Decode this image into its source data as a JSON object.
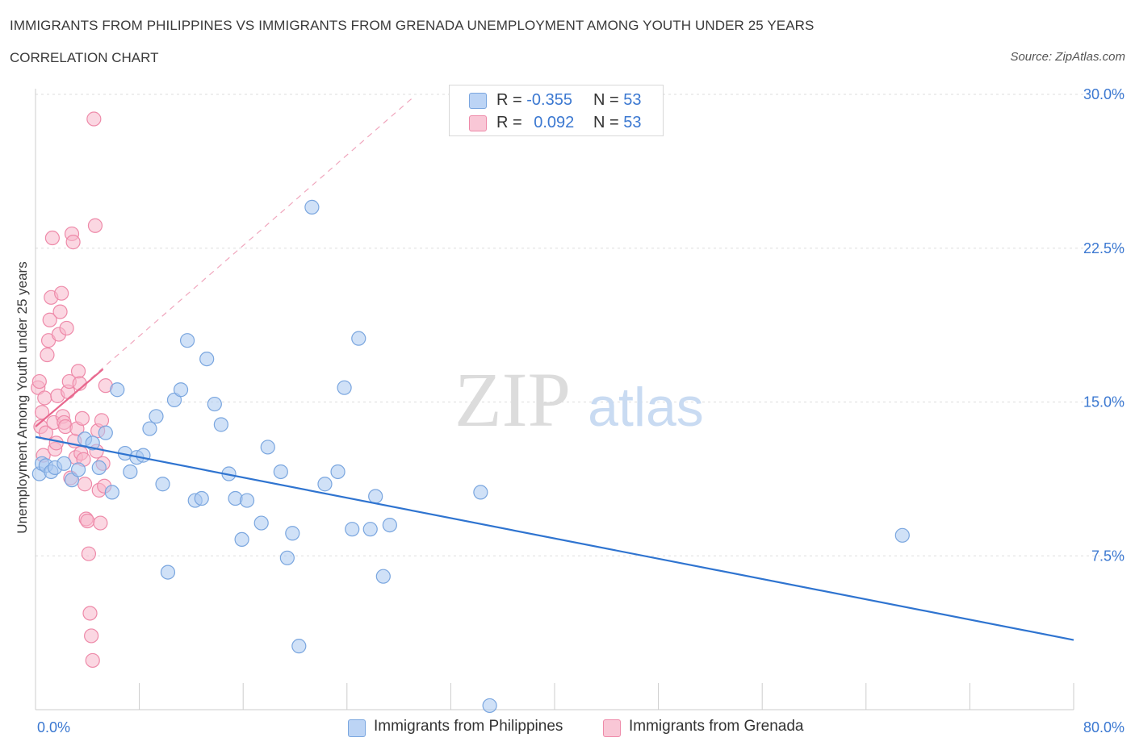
{
  "header": {
    "title": "IMMIGRANTS FROM PHILIPPINES VS IMMIGRANTS FROM GRENADA UNEMPLOYMENT AMONG YOUTH UNDER 25 YEARS",
    "subtitle": "CORRELATION CHART",
    "source": "Source: ZipAtlas.com"
  },
  "legend_top": {
    "philippines": {
      "r_label": "R = ",
      "r_value": "-0.355",
      "n_label": "N = ",
      "n_value": "53"
    },
    "grenada": {
      "r_label": "R = ",
      "r_value": "0.092",
      "n_label": "N = ",
      "n_value": "53"
    }
  },
  "legend_bottom": {
    "philippines": "Immigrants from Philippines",
    "grenada": "Immigrants from Grenada"
  },
  "watermark": {
    "zip": "ZIP",
    "atlas": "atlas"
  },
  "colors": {
    "philippines_fill": "#a9c8f0",
    "philippines_stroke": "#7aa6df",
    "philippines_line": "#2f74d0",
    "grenada_fill": "#f7b6ca",
    "grenada_stroke": "#ee8aa9",
    "grenada_line": "#e8688e",
    "axis_label_blue": "#3b78d1",
    "grid": "#dddddd"
  },
  "chart_data": {
    "type": "scatter",
    "title": "IMMIGRANTS FROM PHILIPPINES VS IMMIGRANTS FROM GRENADA UNEMPLOYMENT AMONG YOUTH UNDER 25 YEARS",
    "xlabel": "",
    "ylabel": "Unemployment Among Youth under 25 years",
    "xlim": [
      0,
      80
    ],
    "ylim": [
      0,
      30
    ],
    "x_tick_labels": [
      "0.0%",
      "80.0%"
    ],
    "y_ticks": [
      7.5,
      15.0,
      22.5,
      30.0
    ],
    "y_tick_labels": [
      "7.5%",
      "15.0%",
      "22.5%",
      "30.0%"
    ],
    "grid": true,
    "legend_position": "bottom",
    "series": [
      {
        "name": "Immigrants from Philippines",
        "points": [
          [
            0.3,
            11.5
          ],
          [
            0.5,
            12.0
          ],
          [
            0.8,
            11.9
          ],
          [
            1.2,
            11.6
          ],
          [
            1.5,
            11.8
          ],
          [
            2.2,
            12.0
          ],
          [
            2.8,
            11.2
          ],
          [
            3.3,
            11.7
          ],
          [
            3.8,
            13.2
          ],
          [
            4.4,
            13.0
          ],
          [
            4.9,
            11.8
          ],
          [
            5.4,
            13.5
          ],
          [
            5.9,
            10.6
          ],
          [
            6.3,
            15.6
          ],
          [
            6.9,
            12.5
          ],
          [
            7.3,
            11.6
          ],
          [
            7.8,
            12.3
          ],
          [
            8.3,
            12.4
          ],
          [
            8.8,
            13.7
          ],
          [
            9.3,
            14.3
          ],
          [
            9.8,
            11.0
          ],
          [
            10.2,
            6.7
          ],
          [
            10.7,
            15.1
          ],
          [
            11.2,
            15.6
          ],
          [
            11.7,
            18.0
          ],
          [
            12.3,
            10.2
          ],
          [
            12.8,
            10.3
          ],
          [
            13.2,
            17.1
          ],
          [
            13.8,
            14.9
          ],
          [
            14.3,
            13.9
          ],
          [
            14.9,
            11.5
          ],
          [
            15.4,
            10.3
          ],
          [
            15.9,
            8.3
          ],
          [
            16.3,
            10.2
          ],
          [
            17.4,
            9.1
          ],
          [
            17.9,
            12.8
          ],
          [
            18.9,
            11.6
          ],
          [
            19.4,
            7.4
          ],
          [
            19.8,
            8.6
          ],
          [
            20.3,
            3.1
          ],
          [
            21.3,
            24.5
          ],
          [
            22.3,
            11.0
          ],
          [
            23.3,
            11.6
          ],
          [
            23.8,
            15.7
          ],
          [
            24.4,
            8.8
          ],
          [
            24.9,
            18.1
          ],
          [
            25.8,
            8.8
          ],
          [
            26.2,
            10.4
          ],
          [
            26.8,
            6.5
          ],
          [
            27.3,
            9.0
          ],
          [
            34.3,
            10.6
          ],
          [
            35.0,
            0.2
          ],
          [
            66.8,
            8.5
          ]
        ],
        "trend": {
          "x": [
            0,
            80
          ],
          "y": [
            13.3,
            3.4
          ]
        }
      },
      {
        "name": "Immigrants from Grenada",
        "points": [
          [
            0.2,
            15.7
          ],
          [
            0.3,
            16.0
          ],
          [
            0.4,
            13.8
          ],
          [
            0.5,
            14.5
          ],
          [
            0.6,
            12.4
          ],
          [
            0.7,
            15.2
          ],
          [
            0.8,
            13.5
          ],
          [
            0.9,
            17.3
          ],
          [
            1.0,
            18.0
          ],
          [
            1.1,
            19.0
          ],
          [
            1.2,
            20.1
          ],
          [
            1.3,
            23.0
          ],
          [
            1.4,
            14.0
          ],
          [
            1.5,
            12.7
          ],
          [
            1.6,
            13.0
          ],
          [
            1.7,
            15.3
          ],
          [
            1.8,
            18.3
          ],
          [
            1.9,
            19.4
          ],
          [
            2.0,
            20.3
          ],
          [
            2.1,
            14.3
          ],
          [
            2.2,
            14.0
          ],
          [
            2.3,
            13.8
          ],
          [
            2.4,
            18.6
          ],
          [
            2.5,
            15.5
          ],
          [
            2.6,
            16.0
          ],
          [
            2.7,
            11.3
          ],
          [
            2.8,
            23.2
          ],
          [
            2.9,
            22.8
          ],
          [
            3.0,
            13.1
          ],
          [
            3.1,
            12.3
          ],
          [
            3.2,
            13.7
          ],
          [
            3.3,
            16.5
          ],
          [
            3.4,
            15.9
          ],
          [
            3.5,
            12.5
          ],
          [
            3.6,
            14.2
          ],
          [
            3.7,
            12.2
          ],
          [
            3.8,
            11.0
          ],
          [
            3.9,
            9.3
          ],
          [
            4.0,
            9.2
          ],
          [
            4.1,
            7.6
          ],
          [
            4.2,
            4.7
          ],
          [
            4.3,
            3.6
          ],
          [
            4.4,
            2.4
          ],
          [
            4.5,
            28.8
          ],
          [
            4.6,
            23.6
          ],
          [
            4.7,
            12.6
          ],
          [
            4.8,
            13.6
          ],
          [
            4.9,
            10.7
          ],
          [
            5.0,
            9.1
          ],
          [
            5.1,
            14.1
          ],
          [
            5.2,
            12.0
          ],
          [
            5.3,
            10.9
          ],
          [
            5.4,
            15.8
          ]
        ],
        "trend": {
          "x": [
            0,
            5.2
          ],
          "y": [
            13.8,
            16.6
          ]
        },
        "trend_extended": {
          "x": [
            0,
            29
          ],
          "y": [
            13.8,
            29.8
          ]
        }
      }
    ]
  }
}
